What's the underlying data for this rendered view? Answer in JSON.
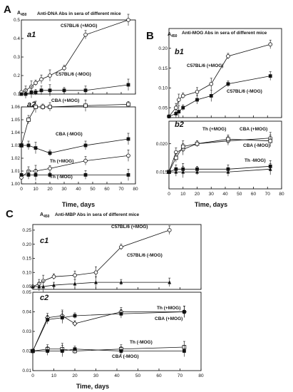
{
  "chart_data": [
    {
      "id": "A",
      "type": "line",
      "panel_letter": "A",
      "title": "Anti-DNA Abs in sera of different mice",
      "ylabel": "A",
      "ylabel_sub": "450",
      "xlabel": "Time, days",
      "xlim": [
        0,
        80
      ],
      "x_ticks": [
        "0",
        "10",
        "20",
        "30",
        "40",
        "50",
        "60",
        "70",
        "80"
      ],
      "sub_panels": [
        {
          "label": "a1",
          "ylim": [
            0.1,
            0.5
          ],
          "y_ticks": [
            "0.1",
            "0.2",
            "0.3",
            "0.4",
            "0.5"
          ],
          "series": [
            {
              "name": "C57BL/6 (+MOG)",
              "marker": "open-circle",
              "x": [
                0,
                3,
                7,
                10,
                14,
                20,
                30,
                45,
                75
              ],
              "y": [
                0.11,
                0.12,
                0.14,
                0.16,
                0.18,
                0.2,
                0.24,
                0.42,
                0.5
              ]
            },
            {
              "name": "C57BL/6 (-MOG)",
              "marker": "filled-square",
              "x": [
                0,
                3,
                7,
                10,
                14,
                20,
                30,
                45,
                75
              ],
              "y": [
                0.1,
                0.1,
                0.11,
                0.11,
                0.12,
                0.12,
                0.12,
                0.12,
                0.15
              ]
            }
          ]
        },
        {
          "label": "a2",
          "ylim": [
            1.0,
            1.06
          ],
          "y_ticks": [
            "1.00",
            "1.01",
            "1.02",
            "1.03",
            "1.04",
            "1.05",
            "1.06"
          ],
          "series": [
            {
              "name": "CBA (+MOG)",
              "marker": "open-square",
              "x": [
                0,
                5,
                10,
                15,
                20,
                45,
                75
              ],
              "y": [
                1.03,
                1.05,
                1.06,
                1.06,
                1.06,
                1.061,
                1.062
              ]
            },
            {
              "name": "CBA (-MOG)",
              "marker": "filled-square",
              "x": [
                0,
                5,
                10,
                20,
                45,
                75
              ],
              "y": [
                1.03,
                1.03,
                1.028,
                1.024,
                1.03,
                1.035
              ]
            },
            {
              "name": "Th (+MOG)",
              "marker": "open-circle",
              "x": [
                0,
                5,
                10,
                20,
                45,
                75
              ],
              "y": [
                1.005,
                1.01,
                1.01,
                1.012,
                1.018,
                1.022
              ]
            },
            {
              "name": "Th (-MOG)",
              "marker": "filled-square",
              "x": [
                0,
                5,
                10,
                20,
                45,
                75
              ],
              "y": [
                1.007,
                1.007,
                1.007,
                1.007,
                1.007,
                1.007
              ]
            }
          ]
        }
      ]
    },
    {
      "id": "B",
      "type": "line",
      "panel_letter": "B",
      "title": "Anti-MOG Abs in sera of different mice",
      "ylabel": "A",
      "ylabel_sub": "450",
      "xlabel": "Time, days",
      "xlim": [
        0,
        80
      ],
      "x_ticks": [
        "0",
        "10",
        "20",
        "30",
        "40",
        "50",
        "60",
        "70",
        "80"
      ],
      "sub_panels": [
        {
          "label": "b1",
          "ylim": [
            0.025,
            0.25
          ],
          "y_ticks": [
            "0.05",
            "0.10",
            "0.15",
            "0.20"
          ],
          "series": [
            {
              "name": "C57BL/6 (+MOG)",
              "marker": "open-circle",
              "x": [
                0,
                5,
                7,
                10,
                20,
                30,
                42,
                72
              ],
              "y": [
                0.028,
                0.05,
                0.07,
                0.08,
                0.09,
                0.11,
                0.18,
                0.21
              ]
            },
            {
              "name": "C57BL/6 (-MOG)",
              "marker": "filled-square",
              "x": [
                0,
                5,
                7,
                10,
                20,
                30,
                42,
                72
              ],
              "y": [
                0.028,
                0.035,
                0.04,
                0.05,
                0.07,
                0.08,
                0.11,
                0.13
              ]
            }
          ]
        },
        {
          "label": "b2",
          "ylim": [
            0.012,
            0.024
          ],
          "y_ticks": [
            "0.015",
            "0.020"
          ],
          "series": [
            {
              "name": "Th (+MOG)",
              "marker": "open-circle",
              "x": [
                0,
                5,
                10,
                20,
                42,
                72
              ],
              "y": [
                0.015,
                0.0185,
                0.019,
                0.02,
                0.0205,
                0.021
              ]
            },
            {
              "name": "CBA (+MOG)",
              "marker": "open-square",
              "x": [
                0,
                5,
                10,
                20,
                42,
                72
              ],
              "y": [
                0.015,
                0.0175,
                0.0195,
                0.02,
                0.0208,
                0.0205
              ]
            },
            {
              "name": "CBA (-MOG)",
              "marker": "filled-square",
              "x": [
                0,
                5,
                10,
                20,
                42,
                72
              ],
              "y": [
                0.015,
                0.0155,
                0.0155,
                0.0155,
                0.0155,
                0.016
              ]
            },
            {
              "name": "Th -MOG)",
              "marker": "filled-triangle",
              "x": [
                0,
                5,
                10,
                20,
                42,
                72
              ],
              "y": [
                0.015,
                0.015,
                0.015,
                0.015,
                0.015,
                0.0155
              ]
            }
          ]
        }
      ]
    },
    {
      "id": "C",
      "type": "line",
      "panel_letter": "C",
      "title": "Anti-MBP Abs in sera of different mice",
      "ylabel": "A",
      "ylabel_sub": "450",
      "xlabel": "Time, days",
      "xlim": [
        0,
        80
      ],
      "x_ticks": [
        "0",
        "10",
        "20",
        "30",
        "40",
        "50",
        "60",
        "70",
        "80"
      ],
      "sub_panels": [
        {
          "label": "c1",
          "ylim": [
            0.04,
            0.27
          ],
          "y_ticks": [
            "0.05",
            "0.10",
            "0.15",
            "0.20",
            "0.25"
          ],
          "series": [
            {
              "name": "C57BL/6 (+MOG)",
              "marker": "open-circle",
              "x": [
                0,
                3,
                5,
                10,
                20,
                30,
                42,
                65
              ],
              "y": [
                0.05,
                0.06,
                0.07,
                0.085,
                0.09,
                0.1,
                0.19,
                0.25
              ]
            },
            {
              "name": "C57BL/6 (-MOG)",
              "marker": "filled-triangle",
              "x": [
                0,
                3,
                5,
                10,
                20,
                30,
                42,
                65
              ],
              "y": [
                0.05,
                0.05,
                0.05,
                0.055,
                0.06,
                0.065,
                0.065,
                0.065
              ]
            }
          ]
        },
        {
          "label": "c2",
          "ylim": [
            0.01,
            0.05
          ],
          "y_ticks": [
            "0.01",
            "0.02",
            "0.03",
            "0.04",
            "0.05"
          ],
          "series": [
            {
              "name": "Th (+MOG)",
              "marker": "open-diamond",
              "x": [
                0,
                7,
                14,
                20,
                42,
                72
              ],
              "y": [
                0.02,
                0.037,
                0.038,
                0.034,
                0.04,
                0.04
              ]
            },
            {
              "name": "CBA (+MOG)",
              "marker": "filled-square",
              "x": [
                0,
                7,
                14,
                20,
                42,
                72
              ],
              "y": [
                0.02,
                0.036,
                0.037,
                0.038,
                0.039,
                0.04
              ]
            },
            {
              "name": "Th (-MOG)",
              "marker": "open-square",
              "x": [
                0,
                7,
                14,
                20,
                42,
                72
              ],
              "y": [
                0.02,
                0.021,
                0.021,
                0.02,
                0.021,
                0.022
              ]
            },
            {
              "name": "CBA (-MOG)",
              "marker": "filled-square",
              "x": [
                0,
                7,
                14,
                20,
                42,
                72
              ],
              "y": [
                0.02,
                0.02,
                0.02,
                0.021,
                0.02,
                0.02
              ]
            }
          ]
        }
      ]
    }
  ]
}
